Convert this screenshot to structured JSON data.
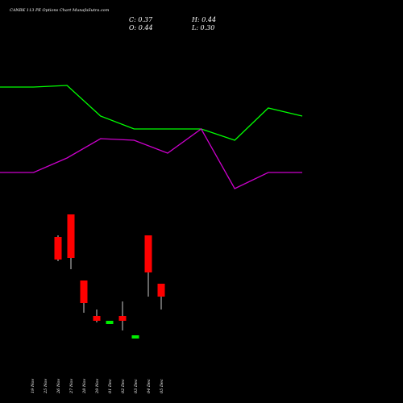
{
  "chart_data": {
    "type": "candlestick",
    "title": "CANBK 113 PE Options Chart MunafaSutra.com",
    "ohlc_readout": {
      "close_label": "C: 0.37",
      "high_label": "H: 0.44",
      "open_label": "O: 0.44",
      "low_label": "L: 0.30"
    },
    "categories": [
      "19 Nov",
      "25 Nov",
      "26 Nov",
      "27 Nov",
      "28 Nov",
      "29 Nov",
      "01 Dec",
      "02 Dec",
      "03 Dec",
      "04 Dec",
      "05 Dec"
    ],
    "candles": [
      {
        "open": 1.13,
        "high": 1.14,
        "low": 0.98,
        "close": 0.99,
        "color": "red"
      },
      {
        "open": 1.27,
        "high": 1.27,
        "low": 0.93,
        "close": 1.0,
        "color": "red"
      },
      {
        "open": 0.86,
        "high": 0.86,
        "low": 0.66,
        "close": 0.72,
        "color": "red"
      },
      {
        "open": 0.64,
        "high": 0.68,
        "low": 0.6,
        "close": 0.61,
        "color": "red"
      },
      {
        "open": 0.59,
        "high": 0.59,
        "low": 0.59,
        "close": 0.61,
        "color": "green"
      },
      {
        "open": 0.64,
        "high": 0.73,
        "low": 0.55,
        "close": 0.61,
        "color": "red"
      },
      {
        "open": 0.5,
        "high": 0.5,
        "low": 0.5,
        "close": 0.52,
        "color": "green"
      },
      {
        "open": 1.14,
        "high": 1.14,
        "low": 0.76,
        "close": 0.91,
        "color": "red"
      },
      {
        "open": 0.84,
        "high": 0.84,
        "low": 0.68,
        "close": 0.76,
        "color": "red"
      }
    ],
    "candle_x_start_index": 2,
    "lines": [
      {
        "color": "#00ff00",
        "y": [
          2.06,
          2.06,
          2.07,
          1.88,
          1.8,
          1.8,
          1.8,
          1.73,
          1.93,
          1.88
        ]
      },
      {
        "color": "#cc00cc",
        "y": [
          1.53,
          1.53,
          1.62,
          1.74,
          1.73,
          1.65,
          1.8,
          1.43,
          1.53,
          1.53
        ]
      }
    ],
    "line_x": [
      0,
      1,
      2,
      3,
      4,
      5,
      6,
      7,
      8,
      9
    ],
    "y_range": [
      0.3,
      2.5
    ],
    "grid": false,
    "colors": {
      "background": "#000000",
      "up": "#00ee00",
      "down": "#ff0000",
      "wick": "#ffffff"
    }
  }
}
